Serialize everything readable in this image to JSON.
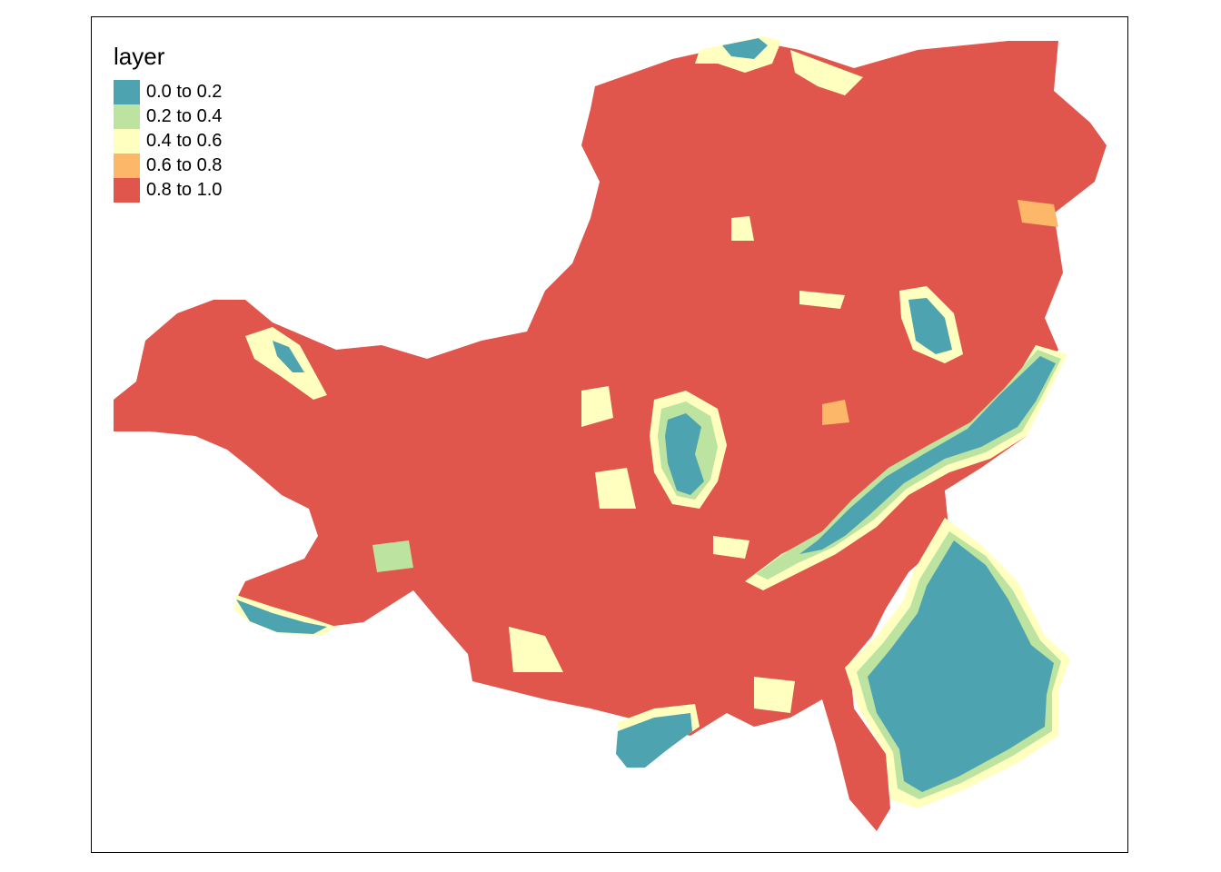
{
  "legend": {
    "title": "layer",
    "items": [
      {
        "label": "0.0 to 0.2",
        "color": "#4DA3B0"
      },
      {
        "label": "0.2 to 0.4",
        "color": "#BCE3A0"
      },
      {
        "label": "0.4 to 0.6",
        "color": "#FFFFBF"
      },
      {
        "label": "0.6 to 0.8",
        "color": "#FDB768"
      },
      {
        "label": "0.8 to 1.0",
        "color": "#E0554C"
      }
    ]
  }
}
